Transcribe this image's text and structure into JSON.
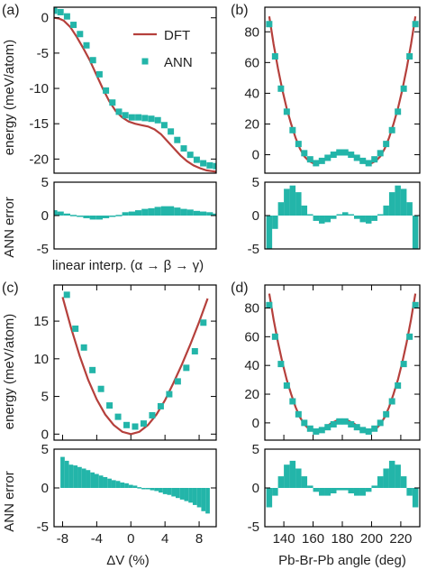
{
  "colors": {
    "dft": "#b5403c",
    "ann": "#23b5a9",
    "axis": "#000000"
  },
  "chart_data": [
    {
      "panel": "(a)",
      "type": "line+scatter",
      "xlabel": "",
      "ylabel": "energy (meV/atom)",
      "xlim": [
        0,
        1
      ],
      "ylim": [
        -22,
        1.5
      ],
      "yticks": [
        "0",
        "-5",
        "-10",
        "-15",
        "-20"
      ],
      "ytick_values": [
        0,
        -5,
        -10,
        -15,
        -20
      ],
      "legend": {
        "position": "top-right",
        "entries": [
          "DFT",
          "ANN"
        ]
      },
      "series": [
        {
          "name": "DFT",
          "kind": "line",
          "x": [
            0.0,
            0.03,
            0.06,
            0.1,
            0.14,
            0.18,
            0.22,
            0.26,
            0.3,
            0.34,
            0.38,
            0.42,
            0.46,
            0.5,
            0.54,
            0.58,
            0.62,
            0.66,
            0.7,
            0.74,
            0.78,
            0.82,
            0.86,
            0.9,
            0.94,
            0.97,
            1.0
          ],
          "y": [
            0.0,
            -0.1,
            -0.4,
            -1.3,
            -2.7,
            -4.3,
            -6.0,
            -8.0,
            -10.0,
            -11.8,
            -13.2,
            -14.1,
            -14.7,
            -15.0,
            -15.2,
            -15.4,
            -15.8,
            -16.5,
            -17.5,
            -18.5,
            -19.5,
            -20.3,
            -20.9,
            -21.3,
            -21.6,
            -21.7,
            -21.8
          ]
        },
        {
          "name": "ANN",
          "kind": "scatter",
          "x": [
            0.0,
            0.04,
            0.08,
            0.12,
            0.16,
            0.2,
            0.24,
            0.28,
            0.32,
            0.36,
            0.4,
            0.44,
            0.48,
            0.52,
            0.56,
            0.6,
            0.64,
            0.68,
            0.72,
            0.76,
            0.8,
            0.84,
            0.88,
            0.92,
            0.96,
            1.0
          ],
          "y": [
            1.0,
            0.8,
            0.2,
            -1.0,
            -2.3,
            -3.9,
            -6.0,
            -8.0,
            -10.3,
            -12.0,
            -13.3,
            -13.8,
            -14.1,
            -14.1,
            -14.2,
            -14.3,
            -14.5,
            -15.2,
            -16.1,
            -17.3,
            -18.5,
            -19.4,
            -20.1,
            -20.6,
            -20.9,
            -21.0
          ]
        }
      ]
    },
    {
      "panel": "(a) inset error",
      "type": "bar",
      "xlabel": "linear interp. (α → β → γ)",
      "ylabel": "ANN error",
      "xlim": [
        0,
        1
      ],
      "ylim": [
        -5,
        5
      ],
      "yticks": [
        "5",
        "0",
        "-5"
      ],
      "ytick_values": [
        5,
        0,
        -5
      ],
      "x": [
        0.0,
        0.04,
        0.08,
        0.12,
        0.16,
        0.2,
        0.24,
        0.28,
        0.32,
        0.36,
        0.4,
        0.44,
        0.48,
        0.52,
        0.56,
        0.6,
        0.64,
        0.68,
        0.72,
        0.76,
        0.8,
        0.84,
        0.88,
        0.92,
        0.96,
        1.0
      ],
      "values": [
        0.8,
        0.6,
        0.3,
        0.1,
        -0.2,
        -0.4,
        -0.6,
        -0.6,
        -0.4,
        0.0,
        0.1,
        0.5,
        0.6,
        0.8,
        1.0,
        1.1,
        1.3,
        1.4,
        1.4,
        1.2,
        1.0,
        0.9,
        0.7,
        0.6,
        0.5,
        0.3
      ]
    },
    {
      "panel": "(b)",
      "type": "line+scatter",
      "xlabel": "",
      "ylabel": "",
      "xlim": [
        127,
        233
      ],
      "ylim": [
        -12,
        96
      ],
      "yticks": [
        "80",
        "60",
        "40",
        "20",
        "0"
      ],
      "ytick_values": [
        80,
        60,
        40,
        20,
        0
      ],
      "series": [
        {
          "name": "DFT",
          "kind": "line",
          "x": [
            130,
            133,
            136,
            139,
            142,
            145,
            148,
            151,
            154,
            157,
            160,
            164,
            168,
            172,
            176,
            180,
            184,
            188,
            192,
            196,
            200,
            203,
            206,
            209,
            212,
            215,
            218,
            221,
            224,
            227,
            230
          ],
          "y": [
            90,
            72,
            56,
            42,
            30,
            20,
            11,
            4,
            -1,
            -4,
            -5.5,
            -5.5,
            -3.5,
            -0.5,
            1.5,
            2,
            1.5,
            -0.5,
            -3.5,
            -5.5,
            -5.5,
            -4,
            -1,
            4,
            11,
            20,
            30,
            42,
            56,
            72,
            90
          ]
        },
        {
          "name": "ANN",
          "kind": "scatter",
          "x": [
            130,
            134,
            138,
            142,
            146,
            150,
            154,
            158,
            162,
            166,
            170,
            174,
            178,
            182,
            186,
            190,
            194,
            198,
            202,
            206,
            210,
            214,
            218,
            222,
            226,
            230
          ],
          "y": [
            85,
            64,
            43,
            28,
            16,
            7,
            1,
            -3,
            -5.5,
            -4,
            -2,
            0,
            1.5,
            1.5,
            0,
            -2,
            -4,
            -5.5,
            -3,
            1,
            7,
            16,
            28,
            43,
            64,
            85
          ]
        }
      ]
    },
    {
      "panel": "(b) inset error",
      "type": "bar",
      "xlabel": "",
      "ylabel": "",
      "xlim": [
        127,
        233
      ],
      "ylim": [
        -5,
        5
      ],
      "yticks": [
        "5",
        "0",
        "-5"
      ],
      "ytick_values": [
        5,
        0,
        -5
      ],
      "x": [
        130,
        134,
        138,
        142,
        146,
        150,
        154,
        158,
        162,
        166,
        170,
        174,
        178,
        182,
        186,
        190,
        194,
        198,
        202,
        206,
        210,
        214,
        218,
        222,
        226,
        230
      ],
      "values": [
        -5.0,
        -2.0,
        2.0,
        4.0,
        4.5,
        3.5,
        1.5,
        0.2,
        -0.8,
        -1.2,
        -1.0,
        -0.5,
        0.2,
        0.5,
        0.2,
        -0.5,
        -1.0,
        -1.2,
        -0.8,
        0.2,
        1.5,
        3.5,
        4.5,
        4.0,
        2.0,
        -5.0
      ]
    },
    {
      "panel": "(c)",
      "type": "line+scatter",
      "xlabel": "",
      "ylabel": "energy (meV/atom)",
      "xlim": [
        -9,
        10
      ],
      "ylim": [
        -0.8,
        19.8
      ],
      "yticks": [
        "15",
        "10",
        "5",
        "0"
      ],
      "ytick_values": [
        15,
        10,
        5,
        0
      ],
      "series": [
        {
          "name": "DFT",
          "kind": "line",
          "x": [
            -8,
            -7,
            -6,
            -5,
            -4,
            -3,
            -2,
            -1,
            0,
            1,
            2,
            3,
            4,
            5,
            6,
            7,
            8,
            9
          ],
          "y": [
            18.2,
            14.1,
            10.4,
            7.2,
            4.6,
            2.6,
            1.2,
            0.3,
            0.0,
            0.3,
            1.2,
            2.6,
            4.5,
            6.8,
            9.3,
            12.0,
            14.9,
            18.0
          ]
        },
        {
          "name": "ANN",
          "kind": "scatter",
          "x": [
            -7.5,
            -6.5,
            -5.5,
            -4.5,
            -3.5,
            -2.5,
            -1.5,
            -0.5,
            0.5,
            1.5,
            2.5,
            3.5,
            4.5,
            5.5,
            6.5,
            7.5,
            8.5
          ],
          "y": [
            18.5,
            14.0,
            11.5,
            8.5,
            6.0,
            3.8,
            2.3,
            1.2,
            1.0,
            1.4,
            2.5,
            3.7,
            5.3,
            7.0,
            8.8,
            11.0,
            14.8
          ]
        }
      ]
    },
    {
      "panel": "(c) inset error",
      "type": "bar",
      "xlabel": "ΔV (%)",
      "ylabel": "ANN error",
      "xlim": [
        -9,
        10
      ],
      "ylim": [
        -5,
        5
      ],
      "yticks": [
        "5",
        "0",
        "-5"
      ],
      "ytick_values": [
        5,
        0,
        -5
      ],
      "xticks": [
        "-8",
        "-4",
        "0",
        "4",
        "8"
      ],
      "xtick_values": [
        -8,
        -4,
        0,
        4,
        8
      ],
      "x": [
        -8,
        -7.5,
        -7,
        -6.5,
        -6,
        -5.5,
        -5,
        -4.5,
        -4,
        -3.5,
        -3,
        -2.5,
        -2,
        -1.5,
        -1,
        -0.5,
        0,
        0.5,
        1,
        1.5,
        2,
        2.5,
        3,
        3.5,
        4,
        4.5,
        5,
        5.5,
        6,
        6.5,
        7,
        7.5,
        8,
        8.5,
        9
      ],
      "values": [
        4.0,
        3.5,
        3.0,
        2.9,
        2.7,
        2.5,
        2.3,
        2.0,
        1.8,
        1.6,
        1.4,
        1.2,
        1.0,
        0.9,
        0.7,
        0.6,
        0.4,
        0.3,
        0.1,
        0.0,
        -0.1,
        -0.3,
        -0.4,
        -0.6,
        -0.8,
        -0.9,
        -1.1,
        -1.3,
        -1.5,
        -1.7,
        -1.9,
        -2.2,
        -2.5,
        -3.0,
        -3.3
      ]
    },
    {
      "panel": "(d)",
      "type": "line+scatter",
      "xlabel": "",
      "ylabel": "",
      "xlim": [
        127,
        233
      ],
      "ylim": [
        -12,
        96
      ],
      "yticks": [
        "80",
        "60",
        "40",
        "20",
        "0"
      ],
      "ytick_values": [
        80,
        60,
        40,
        20,
        0
      ],
      "series": [
        {
          "name": "DFT",
          "kind": "line",
          "x": [
            130,
            133,
            136,
            139,
            142,
            145,
            148,
            151,
            154,
            157,
            160,
            164,
            168,
            172,
            176,
            180,
            184,
            188,
            192,
            196,
            200,
            203,
            206,
            209,
            212,
            215,
            218,
            221,
            224,
            227,
            230
          ],
          "y": [
            90,
            72,
            56,
            42,
            30,
            20,
            11,
            4,
            -1,
            -4,
            -5.5,
            -5.5,
            -3.5,
            -0.5,
            1.5,
            2,
            1.5,
            -0.5,
            -3.5,
            -5.5,
            -5.5,
            -4,
            -1,
            4,
            11,
            20,
            30,
            42,
            56,
            72,
            90
          ]
        },
        {
          "name": "ANN",
          "kind": "scatter",
          "x": [
            130,
            134,
            138,
            142,
            146,
            150,
            154,
            158,
            162,
            166,
            170,
            174,
            178,
            182,
            186,
            190,
            194,
            198,
            202,
            206,
            210,
            214,
            218,
            222,
            226,
            230
          ],
          "y": [
            82,
            60,
            41,
            26,
            15,
            6,
            0,
            -4,
            -6,
            -5,
            -3,
            -1,
            1,
            1,
            -1,
            -3,
            -5,
            -6,
            -4,
            0,
            6,
            15,
            26,
            41,
            60,
            82
          ]
        }
      ]
    },
    {
      "panel": "(d) inset error",
      "type": "bar",
      "xlabel": "Pb-Br-Pb angle (deg)",
      "ylabel": "",
      "xlim": [
        127,
        233
      ],
      "ylim": [
        -5,
        5
      ],
      "yticks": [
        "5",
        "0",
        "-5"
      ],
      "ytick_values": [
        5,
        0,
        -5
      ],
      "xticks": [
        "140",
        "160",
        "180",
        "200",
        "220"
      ],
      "xtick_values": [
        140,
        160,
        180,
        200,
        220
      ],
      "x": [
        130,
        134,
        138,
        142,
        146,
        150,
        154,
        158,
        162,
        166,
        170,
        174,
        178,
        182,
        186,
        190,
        194,
        198,
        202,
        206,
        210,
        214,
        218,
        222,
        226,
        230
      ],
      "values": [
        -2.5,
        -1.0,
        1.5,
        3.0,
        3.5,
        2.5,
        1.5,
        0.3,
        -0.5,
        -1.0,
        -1.0,
        -0.7,
        -0.3,
        -0.3,
        -0.7,
        -1.0,
        -1.0,
        -0.5,
        0.3,
        1.5,
        2.5,
        3.5,
        3.0,
        1.5,
        -1.0,
        -2.5
      ]
    }
  ]
}
